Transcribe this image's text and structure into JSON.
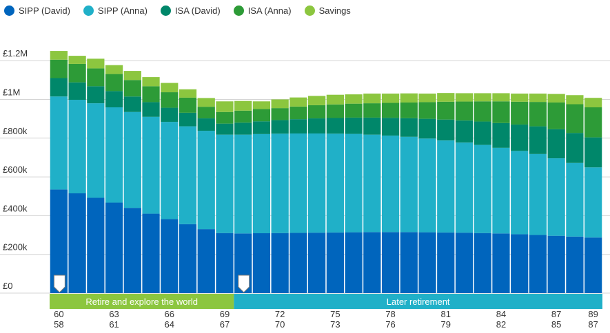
{
  "chart_data": {
    "type": "bar",
    "stacked": true,
    "ylim": [
      0,
      1300000
    ],
    "y_ticks": [
      {
        "value": 0,
        "label": "£0"
      },
      {
        "value": 200000,
        "label": "£200k"
      },
      {
        "value": 400000,
        "label": "£400k"
      },
      {
        "value": 600000,
        "label": "£600k"
      },
      {
        "value": 800000,
        "label": "£800k"
      },
      {
        "value": 1000000,
        "label": "£1M"
      },
      {
        "value": 1200000,
        "label": "£1.2M"
      }
    ],
    "grid": true,
    "legend_position": "top-left",
    "x_labels_primary": [
      "60",
      "",
      "",
      "63",
      "",
      "",
      "66",
      "",
      "",
      "69",
      "",
      "",
      "72",
      "",
      "",
      "75",
      "",
      "",
      "78",
      "",
      "",
      "81",
      "",
      "",
      "84",
      "",
      "",
      "87",
      "",
      "89"
    ],
    "x_labels_secondary": [
      "58",
      "",
      "",
      "61",
      "",
      "",
      "64",
      "",
      "",
      "67",
      "",
      "",
      "70",
      "",
      "",
      "73",
      "",
      "",
      "76",
      "",
      "",
      "79",
      "",
      "",
      "82",
      "",
      "",
      "85",
      "",
      "87"
    ],
    "series": [
      {
        "name": "SIPP (David)",
        "color": "#0065bd",
        "values": [
          535000,
          515000,
          492000,
          467000,
          440000,
          410000,
          382000,
          356000,
          330000,
          310000,
          308000,
          309000,
          310000,
          311000,
          312000,
          313000,
          314000,
          315000,
          315000,
          315000,
          314000,
          313000,
          312000,
          310000,
          308000,
          304000,
          300000,
          296000,
          292000,
          287000
        ]
      },
      {
        "name": "SIPP (Anna)",
        "color": "#20b0c8",
        "values": [
          480000,
          483000,
          488000,
          492000,
          495000,
          500000,
          502000,
          505000,
          508000,
          508000,
          510000,
          512000,
          513000,
          513000,
          512000,
          510000,
          508000,
          503000,
          498000,
          492000,
          484000,
          475000,
          465000,
          455000,
          442000,
          430000,
          418000,
          400000,
          380000,
          362000
        ]
      },
      {
        "name": "ISA (David)",
        "color": "#00876a",
        "values": [
          95000,
          90000,
          88000,
          84000,
          80000,
          76000,
          73000,
          70000,
          64000,
          57000,
          62000,
          66000,
          70000,
          74000,
          78000,
          81000,
          84000,
          88000,
          92000,
          96000,
          102000,
          108000,
          114000,
          121000,
          128000,
          136000,
          143000,
          150000,
          155000,
          155000
        ]
      },
      {
        "name": "ISA (Anna)",
        "color": "#2d9b37",
        "values": [
          95000,
          95000,
          92000,
          88000,
          85000,
          82000,
          80000,
          78000,
          60000,
          60000,
          62000,
          63000,
          62000,
          65000,
          68000,
          70000,
          72000,
          74000,
          77000,
          81000,
          86000,
          92000,
          98000,
          104000,
          112000,
          118000,
          126000,
          138000,
          148000,
          155000
        ]
      },
      {
        "name": "Savings",
        "color": "#8cc63f",
        "values": [
          45000,
          42000,
          50000,
          46000,
          47000,
          47000,
          48000,
          43000,
          45000,
          55000,
          50000,
          40000,
          45000,
          47000,
          48000,
          50000,
          48000,
          50000,
          48000,
          47000,
          44000,
          45000,
          43000,
          42000,
          42000,
          42000,
          43000,
          44000,
          47000,
          49000
        ]
      }
    ],
    "phases": [
      {
        "label": "Retire and explore the world",
        "start": 0,
        "end": 10,
        "color": "#8cc63f"
      },
      {
        "label": "Later retirement",
        "start": 10,
        "end": 30,
        "color": "#20b0c8"
      }
    ],
    "markers": [
      0,
      10
    ]
  }
}
